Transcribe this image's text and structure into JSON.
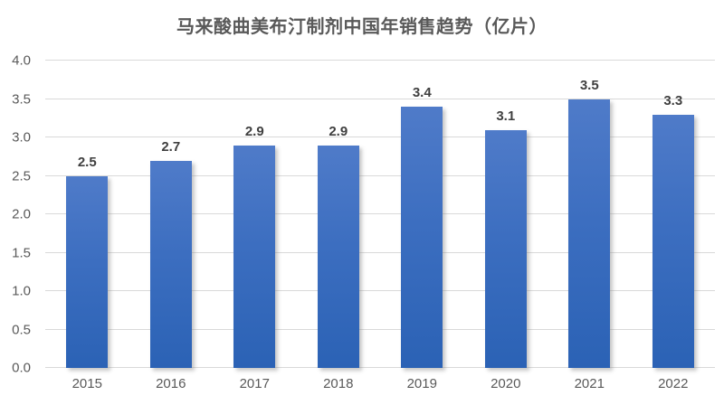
{
  "title": "马来酸曲美布汀制剂中国年销售趋势（亿片）",
  "colors": {
    "bar_gradient_top": "#4F7BC9",
    "bar_gradient_bottom": "#2B62B5",
    "gridline": "#D9D9D9",
    "axis_text": "#595959",
    "data_label_text": "#3F3F3F",
    "title_text": "#595959",
    "background": "#FFFFFF"
  },
  "chart_data": {
    "type": "bar",
    "title": "马来酸曲美布汀制剂中国年销售趋势（亿片）",
    "categories": [
      "2015",
      "2016",
      "2017",
      "2018",
      "2019",
      "2020",
      "2021",
      "2022"
    ],
    "values": [
      2.5,
      2.7,
      2.9,
      2.9,
      3.4,
      3.1,
      3.5,
      3.3
    ],
    "data_labels": [
      "2.5",
      "2.7",
      "2.9",
      "2.9",
      "3.4",
      "3.1",
      "3.5",
      "3.3"
    ],
    "xlabel": "",
    "ylabel": "",
    "ylim": [
      0,
      4.0
    ],
    "ytick_step": 0.5,
    "ytick_labels": [
      "0.0",
      "0.5",
      "1.0",
      "1.5",
      "2.0",
      "2.5",
      "3.0",
      "3.5",
      "4.0"
    ],
    "grid": true,
    "legend": false,
    "data_labels_position": "above-bar"
  }
}
